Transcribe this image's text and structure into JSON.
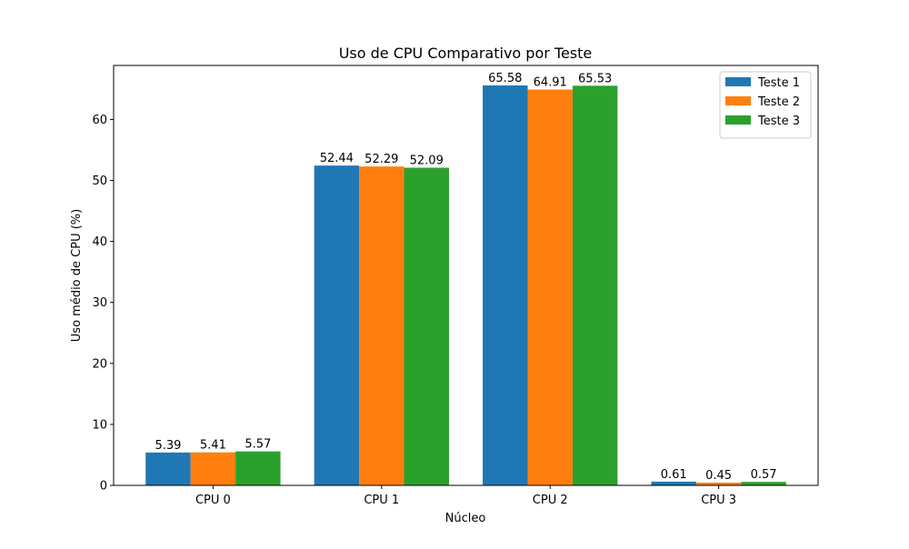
{
  "chart_data": {
    "type": "bar",
    "title": "Uso de CPU Comparativo por Teste",
    "xlabel": "Núcleo",
    "ylabel": "Uso médio de CPU (%)",
    "categories": [
      "CPU 0",
      "CPU 1",
      "CPU 2",
      "CPU 3"
    ],
    "series": [
      {
        "name": "Teste 1",
        "color": "#1f77b4",
        "values": [
          5.39,
          52.44,
          65.58,
          0.61
        ]
      },
      {
        "name": "Teste 2",
        "color": "#ff7f0e",
        "values": [
          5.41,
          52.29,
          64.91,
          0.45
        ]
      },
      {
        "name": "Teste 3",
        "color": "#2ca02c",
        "values": [
          5.57,
          52.09,
          65.53,
          0.57
        ]
      }
    ],
    "ylim": [
      0,
      68.86
    ],
    "yticks": [
      0,
      10,
      20,
      30,
      40,
      50,
      60
    ],
    "grid": false,
    "legend_position": "top-right",
    "data_labels": true
  }
}
